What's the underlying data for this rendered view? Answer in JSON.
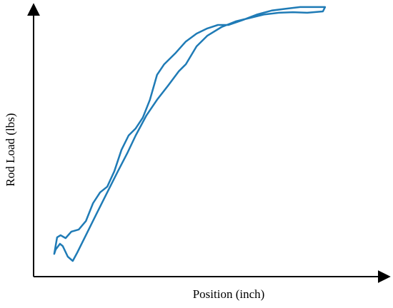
{
  "chart_data": {
    "type": "line",
    "xlabel": "Position (inch)",
    "ylabel": "Rod Load (lbs)",
    "color": "#1f7bb6",
    "xlim": [
      0,
      100
    ],
    "ylim": [
      0,
      100
    ],
    "x": [
      5.8,
      6.6,
      7.6,
      9.0,
      10.6,
      12.7,
      14.7,
      16.7,
      18.7,
      20.7,
      22.7,
      24.7,
      26.7,
      28.7,
      30.7,
      32.7,
      34.7,
      36.7,
      39.8,
      42.8,
      45.8,
      48.8,
      51.8,
      54.8,
      58.8,
      62.9,
      66.9,
      70.9,
      74.9,
      78.9,
      81.9,
      81.3,
      76.9,
      72.9,
      68.9,
      64.9,
      60.8,
      56.8,
      52.8,
      48.8,
      45.8,
      42.8,
      40.8,
      37.8,
      34.7,
      31.7,
      28.7,
      26.3,
      23.7,
      20.7,
      17.7,
      14.7,
      12.2,
      11.0,
      9.6,
      8.2,
      7.4,
      6.2,
      5.8
    ],
    "values": [
      8.4,
      14.5,
      15.3,
      14.2,
      16.6,
      17.4,
      20.5,
      27.1,
      31.1,
      33.2,
      38.9,
      46.8,
      52.1,
      54.7,
      58.7,
      65.3,
      74.5,
      78.4,
      82.4,
      86.8,
      89.7,
      91.6,
      92.9,
      92.9,
      94.7,
      96.8,
      98.2,
      98.9,
      99.5,
      99.5,
      99.5,
      97.9,
      97.4,
      97.6,
      97.4,
      96.8,
      95.5,
      94.2,
      92.1,
      88.9,
      85.0,
      78.4,
      75.8,
      70.5,
      65.3,
      59.5,
      52.1,
      45.5,
      38.9,
      31.1,
      23.2,
      15.3,
      8.7,
      5.8,
      7.4,
      11.3,
      12.1,
      10.0,
      8.4
    ]
  }
}
